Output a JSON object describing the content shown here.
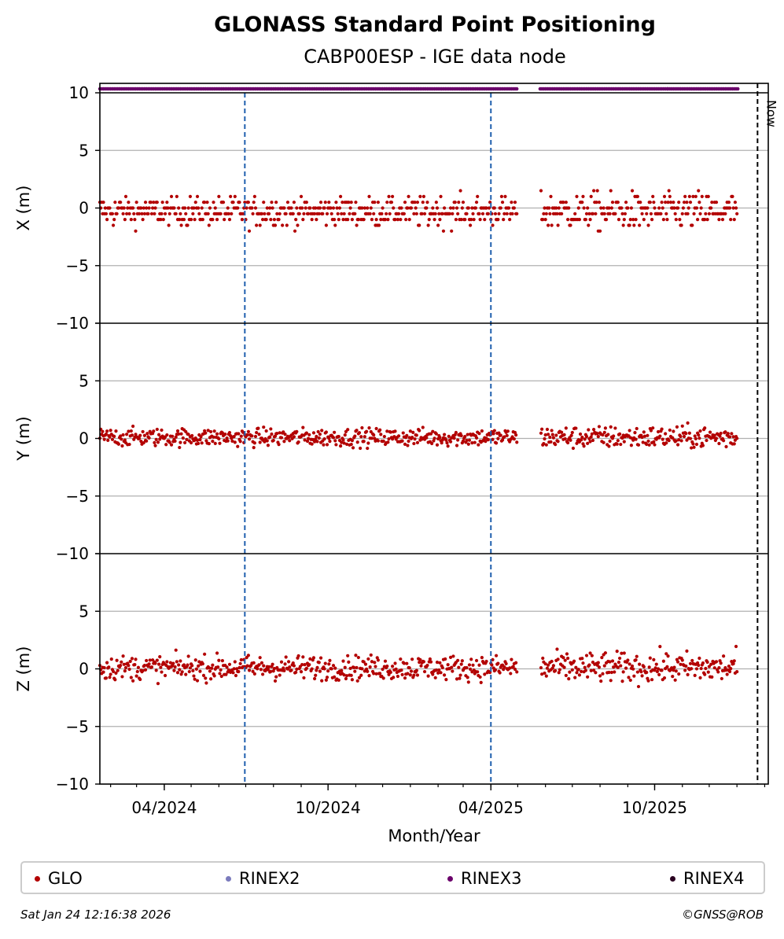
{
  "chart_data": {
    "type": "scatter",
    "title": "GLONASS Standard Point Positioning",
    "subtitle": "CABP00ESP - IGE data node",
    "xlabel": "Month/Year",
    "x_tick_labels": [
      "04/2024",
      "10/2024",
      "04/2025",
      "10/2025"
    ],
    "now_label": "Now",
    "panels": [
      {
        "ylabel": "X (m)",
        "ylim": [
          -10,
          10
        ],
        "yticks": [
          "10",
          "5",
          "0",
          "−5",
          "−10"
        ],
        "mean": -0.3,
        "spread": 0.9
      },
      {
        "ylabel": "Y (m)",
        "ylim": [
          -10,
          10
        ],
        "yticks": [
          "",
          "5",
          "0",
          "−5",
          "−10"
        ],
        "mean": 0.1,
        "spread": 0.55
      },
      {
        "ylabel": "Z (m)",
        "ylim": [
          -10,
          10
        ],
        "yticks": [
          "",
          "5",
          "0",
          "−5",
          "−10"
        ],
        "mean": 0.1,
        "spread": 0.75
      }
    ],
    "x_range": [
      "2024-01-20",
      "2026-02-05"
    ],
    "data_gaps": [
      [
        "2025-05-01",
        "2025-05-26"
      ]
    ],
    "data_end": "2026-01-01",
    "dashed_lines": [
      "2024-06-30",
      "2025-04-01"
    ],
    "now_line": "2026-01-24",
    "rinex3_coverage": [
      [
        "2024-01-20",
        "2025-05-01"
      ],
      [
        "2025-05-26",
        "2025-10-15"
      ],
      [
        "2025-10-16",
        "2026-01-02"
      ]
    ],
    "legend": [
      {
        "label": "GLO",
        "color": "#b30000"
      },
      {
        "label": "RINEX2",
        "color": "#7b7bbd"
      },
      {
        "label": "RINEX3",
        "color": "#6b006b"
      },
      {
        "label": "RINEX4",
        "color": "#2a0020"
      }
    ]
  },
  "footer": {
    "timestamp": "Sat Jan 24 12:16:38 2026",
    "credit": "©GNSS@ROB"
  }
}
